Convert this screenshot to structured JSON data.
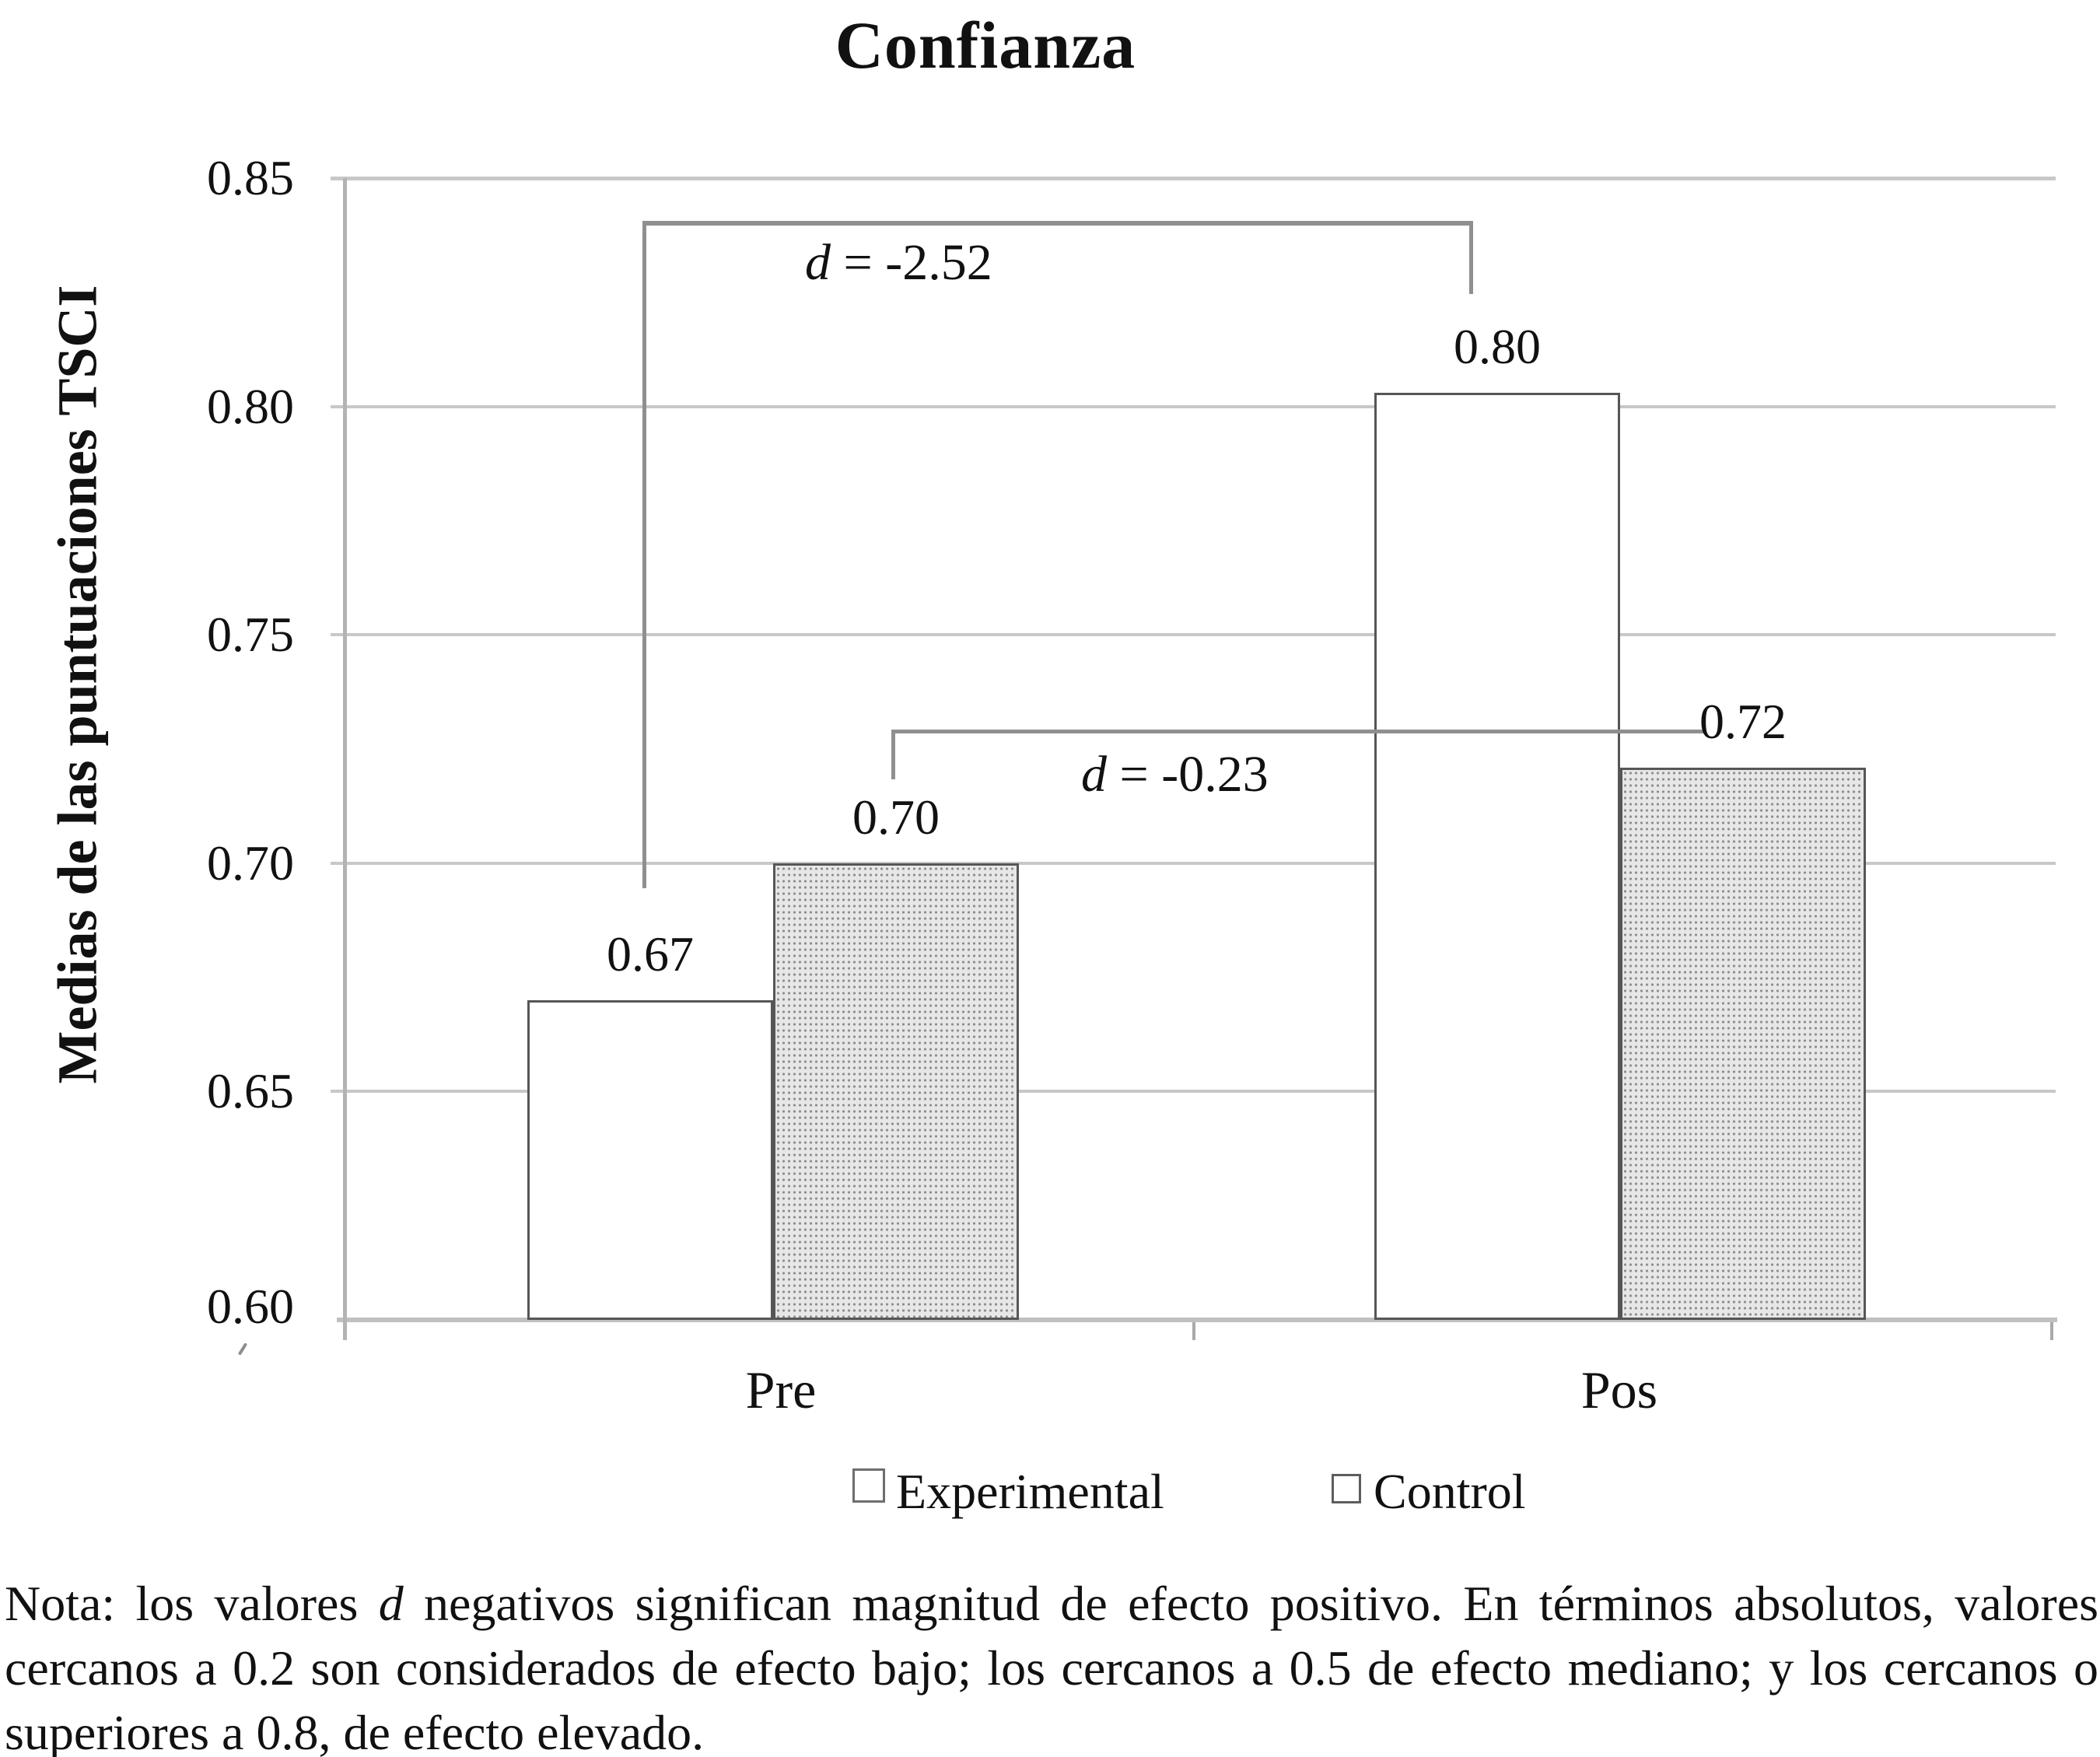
{
  "title": "Confianza",
  "y_axis": {
    "title": "Medias de las puntuaciones TSCI",
    "ticks": [
      "0.85",
      "0.80",
      "0.75",
      "0.70",
      "0.65",
      "0.60"
    ]
  },
  "x_axis": {
    "categories": [
      "Pre",
      "Pos"
    ]
  },
  "bars": {
    "pre_experimental": {
      "value": 0.67,
      "label": "0.67"
    },
    "pre_control": {
      "value": 0.7,
      "label": "0.70"
    },
    "pos_experimental": {
      "value": 0.803,
      "label": "0.80"
    },
    "pos_control": {
      "value": 0.721,
      "label": "0.72"
    }
  },
  "annotations": {
    "top": {
      "symbol": "d",
      "text": " = -2.52"
    },
    "mid": {
      "symbol": "d",
      "text": " = -0.23"
    }
  },
  "legend": {
    "experimental": "Experimental",
    "control": "Control"
  },
  "note": {
    "prefix": "Nota: los valores ",
    "symbol": "d",
    "body": " negativos significan magnitud de efecto positivo. En términos absolutos, valores cercanos a 0.2 son considerados de efecto bajo; los cercanos a 0.5 de efecto mediano; y los cercanos o superiores a 0.8, de efecto elevado."
  },
  "colors": {
    "gridline": "#c8c8c8",
    "axis_line": "#b3b3b3",
    "bracket": "#8f8f8f",
    "bar_border": "#565656",
    "control_fill": "#e7e7e7",
    "control_dot": "#8f8f8f"
  },
  "chart_data": {
    "type": "bar",
    "title": "Confianza",
    "categories": [
      "Pre",
      "Pos"
    ],
    "series": [
      {
        "name": "Experimental",
        "values": [
          0.67,
          0.8
        ]
      },
      {
        "name": "Control",
        "values": [
          0.7,
          0.72
        ]
      }
    ],
    "xlabel": "",
    "ylabel": "Medias de las puntuaciones TSCI",
    "ylim": [
      0.6,
      0.85
    ],
    "yticks": [
      0.6,
      0.65,
      0.7,
      0.75,
      0.8,
      0.85
    ],
    "grid": true,
    "data_labels": [
      "0.67",
      "0.70",
      "0.80",
      "0.72"
    ],
    "legend_position": "bottom",
    "annotations": [
      {
        "text": "d = -2.52",
        "connects": [
          "Experimental Pre",
          "Experimental Pos"
        ]
      },
      {
        "text": "d = -0.23",
        "connects": [
          "Control Pre",
          "Control Pos"
        ]
      }
    ],
    "note": "Nota: los valores d negativos significan magnitud de efecto positivo. En términos absolutos, valores cercanos a 0.2 son considerados de efecto bajo; los cercanos a 0.5 de efecto mediano; y los cercanos o superiores a 0.8, de efecto elevado."
  }
}
